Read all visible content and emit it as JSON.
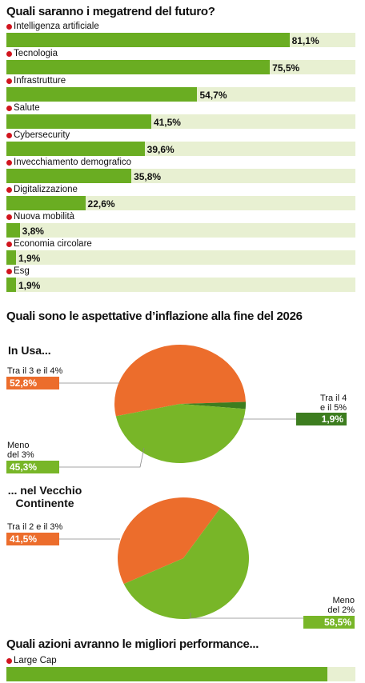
{
  "colors": {
    "bar": "#6aad22",
    "bar_track": "#e8f0d2",
    "dot": "#d1141e",
    "orange": "#ec6d2c",
    "green": "#78b628",
    "dark_green": "#3d7d1f"
  },
  "titles": {
    "megatrend": "Quali saranno i megatrend del futuro?",
    "inflazione": "Quali sono le aspettative d’inflazione alla fine del 2026",
    "azioni": "Quali azioni avranno le migliori performance..."
  },
  "pie_headings": {
    "usa": "In Usa...",
    "europa_line1": "... nel Vecchio",
    "europa_line2": "Continente"
  },
  "pie_labels": {
    "usa_orange": "Tra il 3 e il 4%",
    "usa_dark_line1": "Tra il 4",
    "usa_dark_line2": "e il 5%",
    "usa_green_line1": "Meno",
    "usa_green_line2": "del 3%",
    "eu_orange": "Tra il 2 e il 3%",
    "eu_green_line1": "Meno",
    "eu_green_line2": "del 2%"
  },
  "chart_data": [
    {
      "type": "bar",
      "title": "Quali saranno i megatrend del futuro?",
      "categories": [
        "Intelligenza artificiale",
        "Tecnologia",
        "Infrastrutture",
        "Salute",
        "Cybersecurity",
        "Invecchiamento demografico",
        "Digitalizzazione",
        "Nuova mobilità",
        "Economia circolare",
        "Esg"
      ],
      "values": [
        81.1,
        75.5,
        54.7,
        41.5,
        39.6,
        35.8,
        22.6,
        3.8,
        1.9,
        1.9
      ],
      "value_labels": [
        "81,1%",
        "75,5%",
        "54,7%",
        "41,5%",
        "39,6%",
        "35,8%",
        "22,6%",
        "3,8%",
        "1,9%",
        "1,9%"
      ],
      "xlim": [
        0,
        100
      ]
    },
    {
      "type": "pie",
      "title": "In Usa...",
      "slices": [
        {
          "label": "Tra il 3 e il 4%",
          "value": 52.8,
          "value_label": "52,8%",
          "color": "#ec6d2c"
        },
        {
          "label": "Tra il 4 e il 5%",
          "value": 1.9,
          "value_label": "1,9%",
          "color": "#3d7d1f"
        },
        {
          "label": "Meno del 3%",
          "value": 45.3,
          "value_label": "45,3%",
          "color": "#78b628"
        }
      ]
    },
    {
      "type": "pie",
      "title": "... nel Vecchio Continente",
      "slices": [
        {
          "label": "Tra il 2 e il 3%",
          "value": 41.5,
          "value_label": "41,5%",
          "color": "#ec6d2c"
        },
        {
          "label": "Meno del 2%",
          "value": 58.5,
          "value_label": "58,5%",
          "color": "#78b628"
        }
      ]
    },
    {
      "type": "bar",
      "title": "Quali azioni avranno le migliori performance...",
      "categories": [
        "Large Cap"
      ],
      "values": [
        92.0
      ],
      "xlim": [
        0,
        100
      ]
    }
  ]
}
